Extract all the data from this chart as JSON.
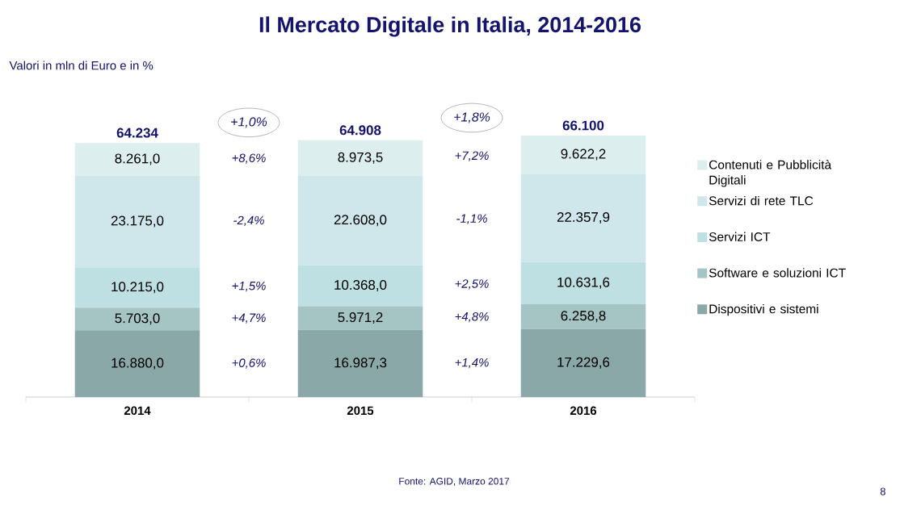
{
  "chart_data": {
    "type": "bar",
    "stacked": true,
    "title": "Il Mercato Digitale in Italia, 2014-2016",
    "subtitle": "Valori in mln di Euro e in %",
    "categories": [
      "2014",
      "2015",
      "2016"
    ],
    "series": [
      {
        "name": "Dispositivi e sistemi",
        "color": "#8ba8a8",
        "values": [
          16880.0,
          16987.3,
          17229.6
        ],
        "value_labels": [
          "16.880,0",
          "16.987,3",
          "17.229,6"
        ]
      },
      {
        "name": "Software e soluzioni ICT",
        "color": "#a5c4c4",
        "values": [
          5703.0,
          5971.2,
          6258.8
        ],
        "value_labels": [
          "5.703,0",
          "5.971,2",
          "6.258,8"
        ]
      },
      {
        "name": "Servizi ICT",
        "color": "#bee0e2",
        "values": [
          10215.0,
          10368.0,
          10631.6
        ],
        "value_labels": [
          "10.215,0",
          "10.368,0",
          "10.631,6"
        ]
      },
      {
        "name": "Servizi di rete TLC",
        "color": "#cfe7ea",
        "values": [
          23175.0,
          22608.0,
          22357.9
        ],
        "value_labels": [
          "23.175,0",
          "22.608,0",
          "22.357,9"
        ]
      },
      {
        "name": "Contenuti e Pubblicità Digitali",
        "color": "#ddeeee",
        "values": [
          8261.0,
          8973.5,
          9622.2
        ],
        "value_labels": [
          "8.261,0",
          "8.973,5",
          "9.622,2"
        ]
      }
    ],
    "totals": [
      "64.234",
      "64.908",
      "66.100"
    ],
    "annotations": [
      "+1,0%",
      "+1,8%",
      "+0,6%",
      "+4,7%",
      "+1,5%",
      "-2,4%",
      "+8,6%",
      "+1,4%",
      "+4,8%",
      "+2,5%",
      "-1,1%",
      "+7,2%",
      "Fonte: AGID, Marzo 2017",
      "8"
    ],
    "legend": "right"
  }
}
